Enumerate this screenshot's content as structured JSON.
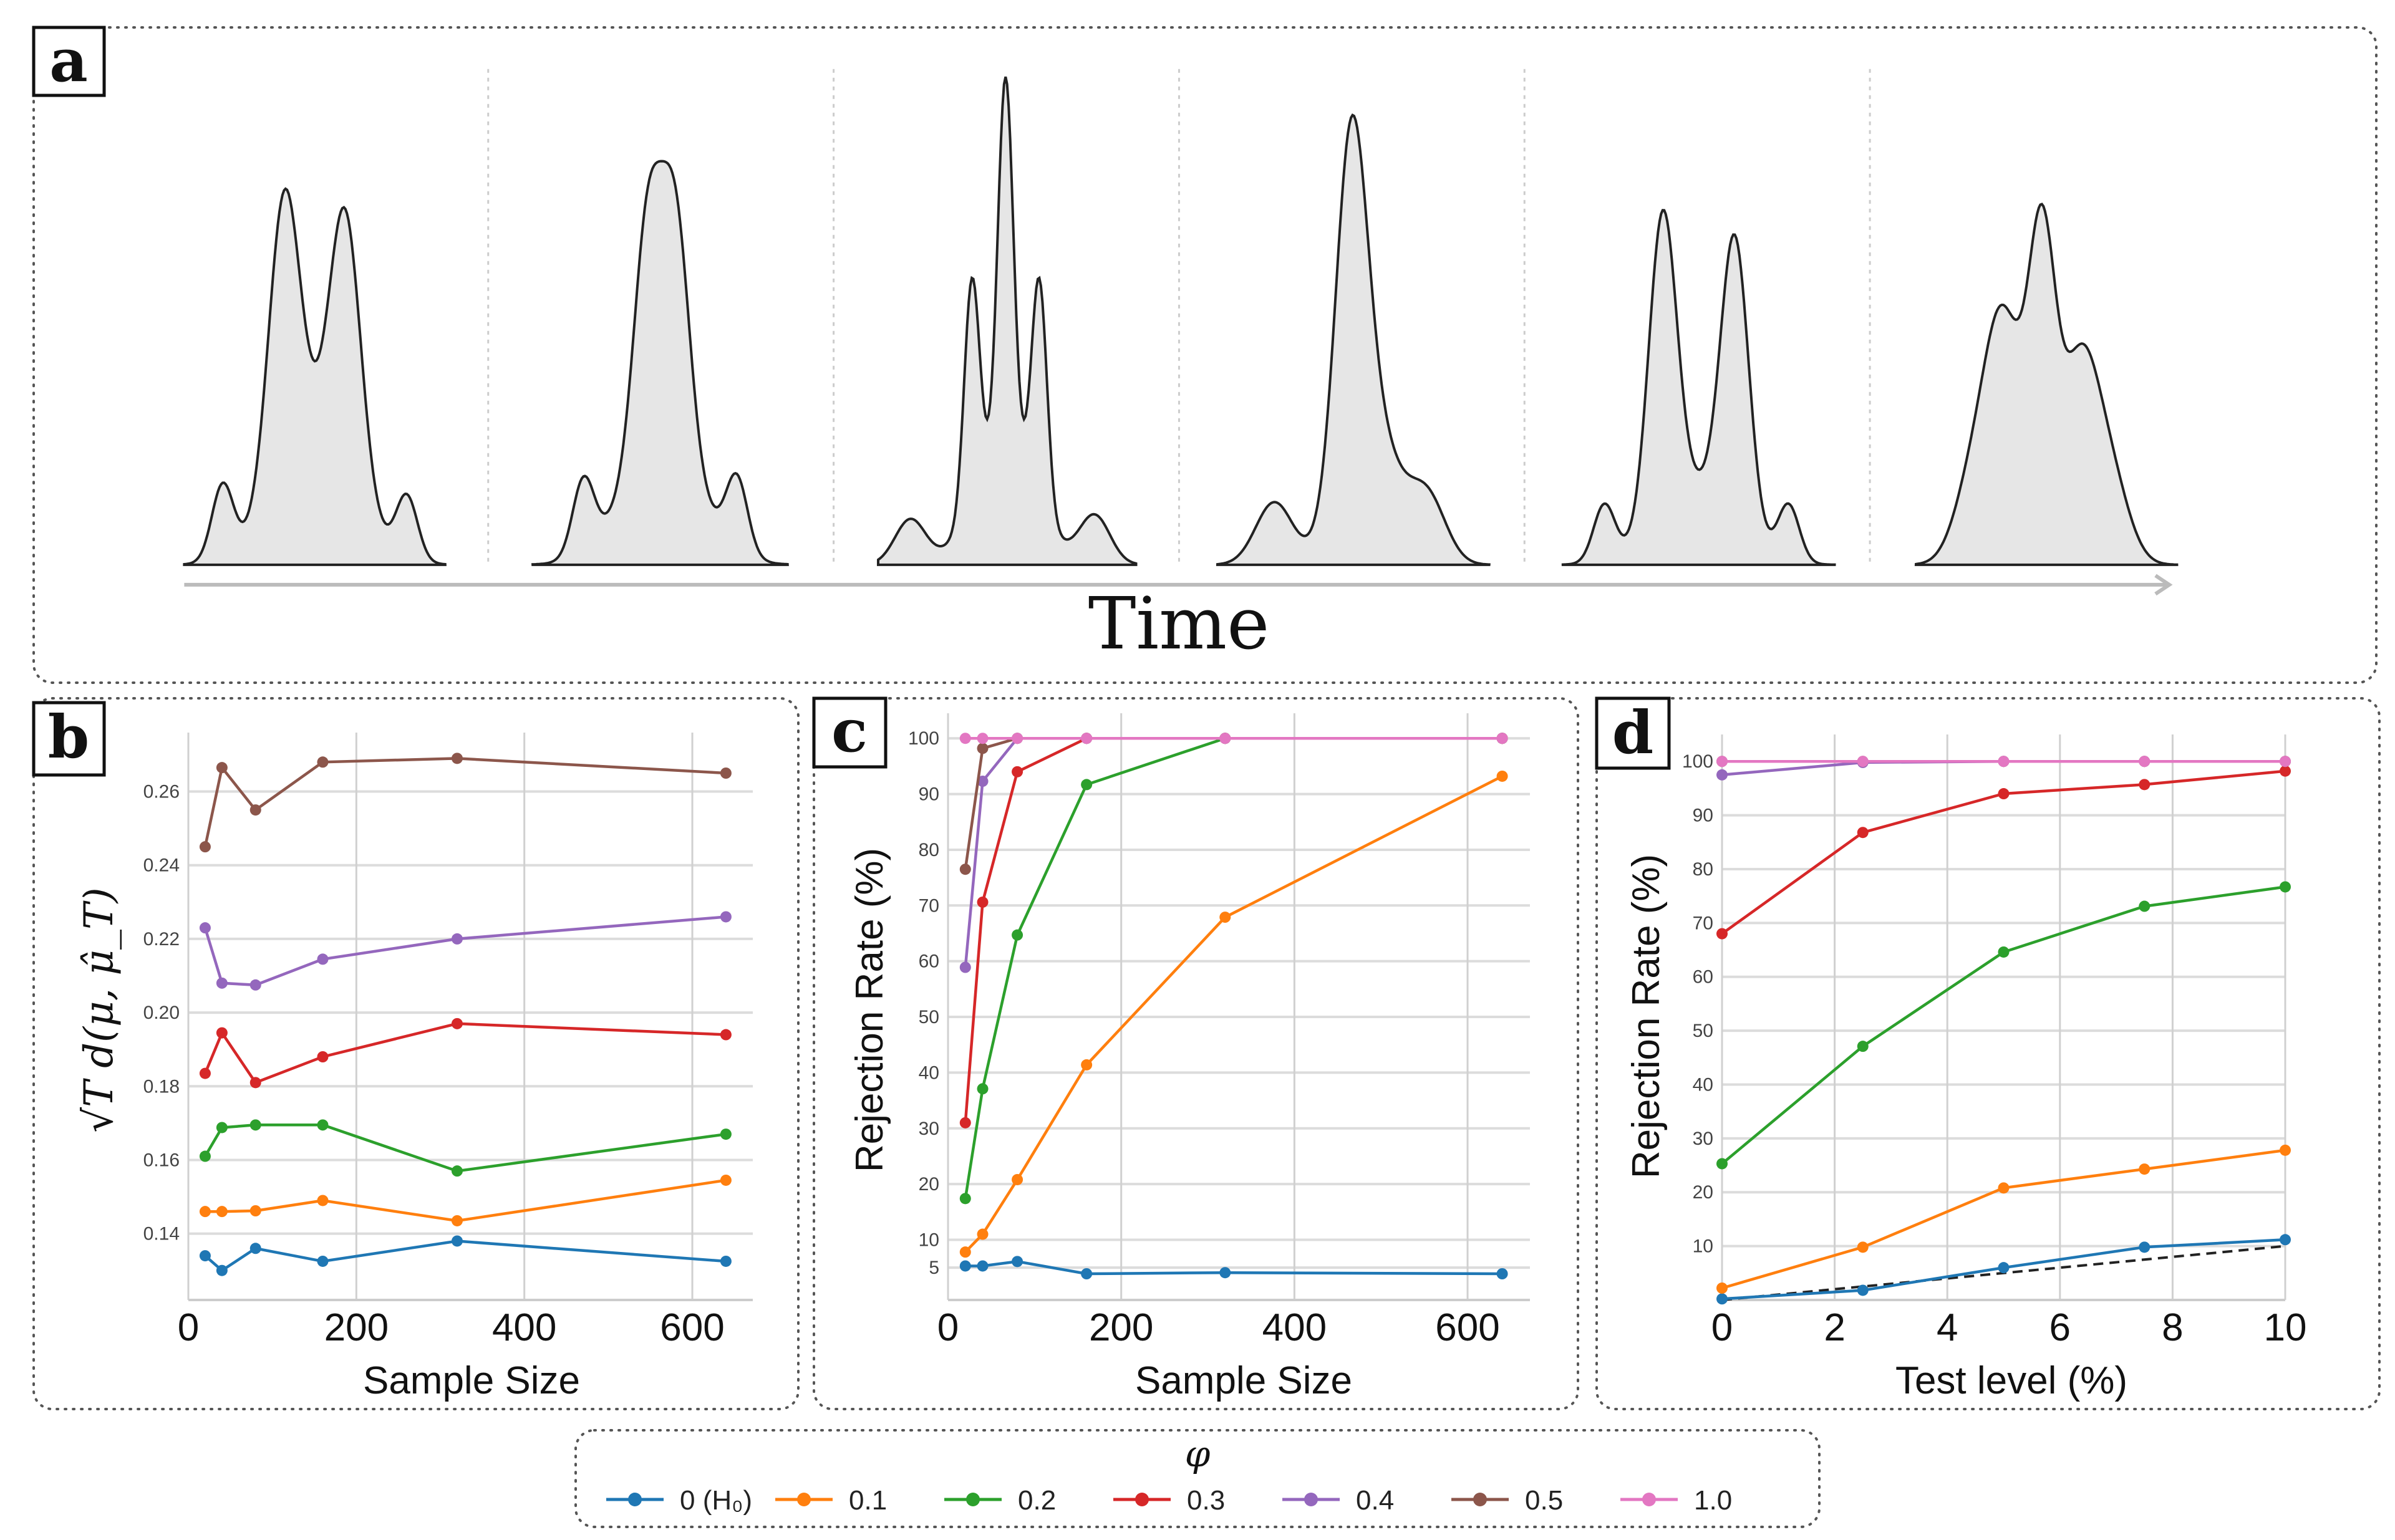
{
  "legend": {
    "title": "φ",
    "items": [
      {
        "label": "0 (H₀)",
        "color": "#1f77b4"
      },
      {
        "label": "0.1",
        "color": "#ff7f0e"
      },
      {
        "label": "0.2",
        "color": "#2ca02c"
      },
      {
        "label": "0.3",
        "color": "#d62728"
      },
      {
        "label": "0.4",
        "color": "#9467bd"
      },
      {
        "label": "0.5",
        "color": "#8c564b"
      },
      {
        "label": "1.0",
        "color": "#e377c2"
      }
    ]
  },
  "chart_data": [
    {
      "panel": "a",
      "type": "area",
      "label": "a",
      "xlabel": "Time",
      "num_distributions": 6
    },
    {
      "panel": "b",
      "type": "line",
      "label": "b",
      "xlabel": "Sample Size",
      "ylabel": "√T d(μ, μ̂_T)",
      "x": [
        20,
        40,
        80,
        160,
        320,
        640
      ],
      "xlim": [
        0,
        672
      ],
      "ylim": [
        0.122,
        0.276
      ],
      "xticks": [
        0,
        200,
        400,
        600
      ],
      "xtick_labels": [
        "0",
        "200",
        "400",
        "600"
      ],
      "yticks": [
        0.14,
        0.16,
        0.18,
        0.2,
        0.22,
        0.24,
        0.26
      ],
      "ytick_labels": [
        "0.14",
        "0.16",
        "0.18",
        "0.20",
        "0.22",
        "0.24",
        "0.26"
      ],
      "grid": true,
      "series": [
        {
          "name": "0 (H₀)",
          "values": [
            0.134,
            0.13,
            0.136,
            0.1325,
            0.138,
            0.1325
          ]
        },
        {
          "name": "0.1",
          "values": [
            0.146,
            0.146,
            0.1462,
            0.149,
            0.1435,
            0.1545
          ]
        },
        {
          "name": "0.2",
          "values": [
            0.161,
            0.1688,
            0.1695,
            0.1695,
            0.157,
            0.167
          ]
        },
        {
          "name": "0.3",
          "values": [
            0.1835,
            0.1945,
            0.181,
            0.188,
            0.197,
            0.194
          ]
        },
        {
          "name": "0.4",
          "values": [
            0.223,
            0.208,
            0.2075,
            0.2145,
            0.22,
            0.226
          ]
        },
        {
          "name": "0.5",
          "values": [
            0.245,
            0.2665,
            0.255,
            0.268,
            0.269,
            0.265
          ]
        }
      ]
    },
    {
      "panel": "c",
      "type": "line",
      "label": "c",
      "xlabel": "Sample Size",
      "ylabel": "Rejection Rate (%)",
      "x": [
        20,
        40,
        80,
        160,
        320,
        640
      ],
      "xlim": [
        0,
        672
      ],
      "ylim": [
        -0.8,
        104.5
      ],
      "xticks": [
        0,
        200,
        400,
        600
      ],
      "xtick_labels": [
        "0",
        "200",
        "400",
        "600"
      ],
      "yticks": [
        5,
        10,
        20,
        30,
        40,
        50,
        60,
        70,
        80,
        90,
        100
      ],
      "ytick_labels": [
        "5",
        "10",
        "20",
        "30",
        "40",
        "50",
        "60",
        "70",
        "80",
        "90",
        "100"
      ],
      "grid": true,
      "series": [
        {
          "name": "0 (H₀)",
          "values": [
            5.3,
            5.3,
            6.1,
            3.9,
            4.1,
            3.9
          ]
        },
        {
          "name": "0.1",
          "values": [
            7.8,
            11,
            20.8,
            41.4,
            67.9,
            93.2
          ]
        },
        {
          "name": "0.2",
          "values": [
            17.4,
            37.1,
            64.7,
            91.7,
            100,
            100
          ]
        },
        {
          "name": "0.3",
          "values": [
            31,
            70.6,
            94,
            100,
            100,
            100
          ]
        },
        {
          "name": "0.4",
          "values": [
            58.9,
            92.3,
            100,
            100,
            100,
            100
          ]
        },
        {
          "name": "0.5",
          "values": [
            76.5,
            98.2,
            100,
            100,
            100,
            100
          ]
        },
        {
          "name": "1.0",
          "values": [
            100,
            100,
            100,
            100,
            100,
            100
          ]
        }
      ]
    },
    {
      "panel": "d",
      "type": "line",
      "label": "d",
      "xlabel": "Test level (%)",
      "ylabel": "Rejection Rate (%)",
      "x": [
        0,
        2.5,
        5,
        7.5,
        10
      ],
      "xlim": [
        0,
        10
      ],
      "ylim": [
        0,
        105
      ],
      "xticks": [
        0,
        2,
        4,
        6,
        8,
        10
      ],
      "xtick_labels": [
        "0",
        "2",
        "4",
        "6",
        "8",
        "10"
      ],
      "yticks": [
        10,
        20,
        30,
        40,
        50,
        60,
        70,
        80,
        90,
        100
      ],
      "ytick_labels": [
        "10",
        "20",
        "30",
        "40",
        "50",
        "60",
        "70",
        "80",
        "90",
        "100"
      ],
      "grid": true,
      "reference_line": {
        "x": [
          0,
          10
        ],
        "y": [
          0,
          10
        ],
        "style": "dashed",
        "color": "#222222"
      },
      "series": [
        {
          "name": "0 (H₀)",
          "values": [
            0.2,
            1.8,
            6.0,
            9.8,
            11.2
          ]
        },
        {
          "name": "0.1",
          "values": [
            2.2,
            9.8,
            20.8,
            24.3,
            27.8
          ]
        },
        {
          "name": "0.2",
          "values": [
            25.3,
            47.1,
            64.6,
            73.1,
            76.7
          ]
        },
        {
          "name": "0.3",
          "values": [
            68,
            86.8,
            94,
            95.7,
            98.2
          ]
        },
        {
          "name": "0.4",
          "values": [
            97.5,
            99.8,
            100,
            100,
            100
          ]
        },
        {
          "name": "0.5",
          "values": [
            100,
            100,
            100,
            100,
            100
          ]
        },
        {
          "name": "1.0",
          "values": [
            100,
            100,
            100,
            100,
            100
          ]
        }
      ]
    }
  ]
}
